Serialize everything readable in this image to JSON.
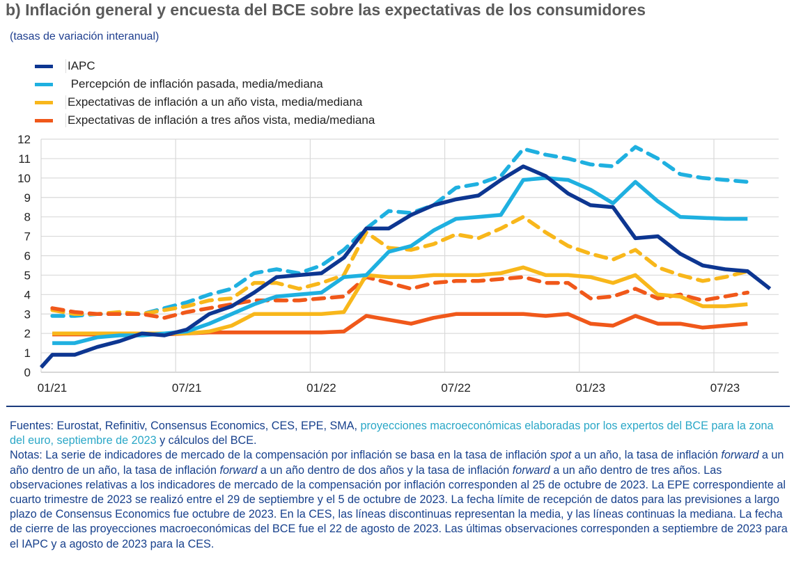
{
  "title": "b) Inflación general y encuesta del BCE sobre las expectativas de los consumidores",
  "subtitle": "(tasas de variación interanual)",
  "colors": {
    "iapc": "#0d3691",
    "perception": "#1fb0e0",
    "one_year": "#f8b71b",
    "three_year": "#f0581a",
    "grid": "#d9d9d9",
    "title": "#5a5a5a",
    "footer_text": "#17408c",
    "footer_link": "#2aa7c7"
  },
  "legend": [
    {
      "label": "IAPC",
      "color": "#0d3691"
    },
    {
      "label": " Percepción de inflación pasada, media/mediana",
      "color": "#1fb0e0"
    },
    {
      "label": "Expectativas de inflación a un año vista, media/mediana",
      "color": "#f8b71b"
    },
    {
      "label": "Expectativas de inflación a tres años vista, media/mediana",
      "color": "#f0581a"
    }
  ],
  "chart_data": {
    "type": "line",
    "title": "b) Inflación general y encuesta del BCE sobre las expectativas de los consumidores",
    "ylabel": "(tasas de variación interanual)",
    "xlabel": "",
    "ylim": [
      0,
      12
    ],
    "yticks": [
      0,
      1,
      2,
      3,
      4,
      5,
      6,
      7,
      8,
      9,
      10,
      11,
      12
    ],
    "grid": true,
    "legend_position": "top-left",
    "x_start": "01/21",
    "x_unit": "month",
    "xtick_labels": [
      {
        "label": "01/21",
        "month_index": 0
      },
      {
        "label": "07/21",
        "month_index": 6
      },
      {
        "label": "01/22",
        "month_index": 12
      },
      {
        "label": "07/22",
        "month_index": 18
      },
      {
        "label": "01/23",
        "month_index": 24
      },
      {
        "label": "07/23",
        "month_index": 30
      }
    ],
    "series": [
      {
        "name": "IAPC",
        "color": "#0d3691",
        "style": "solid",
        "start_value": 0.25,
        "values": [
          0.9,
          0.9,
          1.3,
          1.6,
          2.0,
          1.9,
          2.2,
          3.0,
          3.4,
          4.1,
          4.9,
          5.0,
          5.1,
          5.9,
          7.4,
          7.4,
          8.1,
          8.6,
          8.9,
          9.1,
          9.9,
          10.6,
          10.1,
          9.2,
          8.6,
          8.5,
          6.9,
          7.0,
          6.1,
          5.5,
          5.3,
          5.2,
          4.3
        ]
      },
      {
        "name": "Percepción de inflación pasada, media",
        "color": "#1fb0e0",
        "style": "dashed",
        "values": [
          2.9,
          2.9,
          3.0,
          3.0,
          3.0,
          3.3,
          3.6,
          4.0,
          4.3,
          5.1,
          5.3,
          5.1,
          5.5,
          6.3,
          7.4,
          8.3,
          8.2,
          8.6,
          9.5,
          9.7,
          10.1,
          11.5,
          11.2,
          11.0,
          10.7,
          10.6,
          11.6,
          11.0,
          10.2,
          10.0,
          9.9,
          9.8
        ]
      },
      {
        "name": "Percepción de inflación pasada, mediana",
        "color": "#1fb0e0",
        "style": "solid",
        "values": [
          1.5,
          1.5,
          1.8,
          1.9,
          1.9,
          2.0,
          2.1,
          2.5,
          3.0,
          3.5,
          3.9,
          4.0,
          4.1,
          4.9,
          5.0,
          6.2,
          6.5,
          7.3,
          7.9,
          8.0,
          8.1,
          9.9,
          10.0,
          9.9,
          9.4,
          8.7,
          9.8,
          8.8,
          8.0,
          7.95,
          7.9,
          7.9
        ]
      },
      {
        "name": "Expectativas de inflación a un año vista, media",
        "color": "#f8b71b",
        "style": "dashed",
        "values": [
          3.2,
          3.0,
          3.0,
          3.1,
          3.0,
          3.2,
          3.4,
          3.7,
          3.8,
          4.6,
          4.6,
          4.3,
          4.6,
          5.0,
          7.2,
          6.4,
          6.3,
          6.6,
          7.1,
          6.9,
          7.4,
          8.0,
          7.2,
          6.5,
          6.1,
          5.8,
          6.3,
          5.4,
          5.0,
          4.7,
          4.9,
          5.2
        ]
      },
      {
        "name": "Expectativas de inflación a un año vista, mediana",
        "color": "#f8b71b",
        "style": "solid",
        "values": [
          2.0,
          2.0,
          2.0,
          2.0,
          2.0,
          2.0,
          2.0,
          2.1,
          2.4,
          3.0,
          3.0,
          3.0,
          3.0,
          3.1,
          5.0,
          4.9,
          4.9,
          5.0,
          5.0,
          5.0,
          5.1,
          5.4,
          5.0,
          5.0,
          4.9,
          4.6,
          5.0,
          4.0,
          3.9,
          3.4,
          3.4,
          3.5
        ]
      },
      {
        "name": "Expectativas de inflación a tres años vista, media",
        "color": "#f0581a",
        "style": "dashed",
        "values": [
          3.3,
          3.1,
          3.0,
          3.0,
          3.0,
          2.8,
          3.1,
          3.3,
          3.5,
          3.7,
          3.7,
          3.7,
          3.8,
          3.9,
          4.9,
          4.6,
          4.3,
          4.6,
          4.7,
          4.7,
          4.8,
          4.9,
          4.6,
          4.6,
          3.8,
          3.9,
          4.3,
          3.8,
          4.0,
          3.7,
          3.9,
          4.1
        ]
      },
      {
        "name": "Expectativas de inflación a tres años vista, mediana",
        "color": "#f0581a",
        "style": "solid",
        "values": [
          1.95,
          1.95,
          1.95,
          1.95,
          1.95,
          1.95,
          2.0,
          2.05,
          2.05,
          2.05,
          2.05,
          2.05,
          2.05,
          2.1,
          2.9,
          2.7,
          2.5,
          2.8,
          3.0,
          3.0,
          3.0,
          3.0,
          2.9,
          3.0,
          2.5,
          2.4,
          2.9,
          2.5,
          2.5,
          2.3,
          2.4,
          2.5
        ]
      }
    ]
  },
  "footer": {
    "sources_prefix": "Fuentes: Eurostat, Refinitiv, Consensus Economics, CES, EPE, SMA, ",
    "sources_link": "proyecciones macroeconómicas elaboradas por los expertos del BCE para la zona del euro, septiembre de 2023",
    "sources_suffix": " y cálculos del BCE.",
    "notes_1": "Notas: La serie de indicadores de mercado de la compensación por inflación se basa en la tasa de inflación ",
    "notes_spot": "spot",
    "notes_2": " a un año, la tasa de inflación ",
    "notes_forward_1": "forward",
    "notes_3": " a un año dentro de un año, la tasa de inflación ",
    "notes_forward_2": "forward",
    "notes_4": " a un año dentro de dos años y la tasa de inflación ",
    "notes_forward_3": "forward",
    "notes_5": " a un año dentro de tres años. Las observaciones relativas a los indicadores de mercado de la compensación por inflación corresponden al 25 de octubre de 2023. La EPE correspondiente al cuarto trimestre de 2023 se realizó entre el 29 de septiembre y el 5 de octubre de 2023. La fecha límite de recepción de datos para las previsiones a largo plazo de Consensus Economics fue octubre de 2023. En la CES, las líneas discontinuas representan la media, y las líneas continuas la mediana. La fecha de cierre de las proyecciones macroeconómicas del BCE fue el 22 de agosto de 2023. Las últimas observaciones corresponden a septiembre de 2023 para el IAPC y a agosto de 2023 para la CES."
  }
}
